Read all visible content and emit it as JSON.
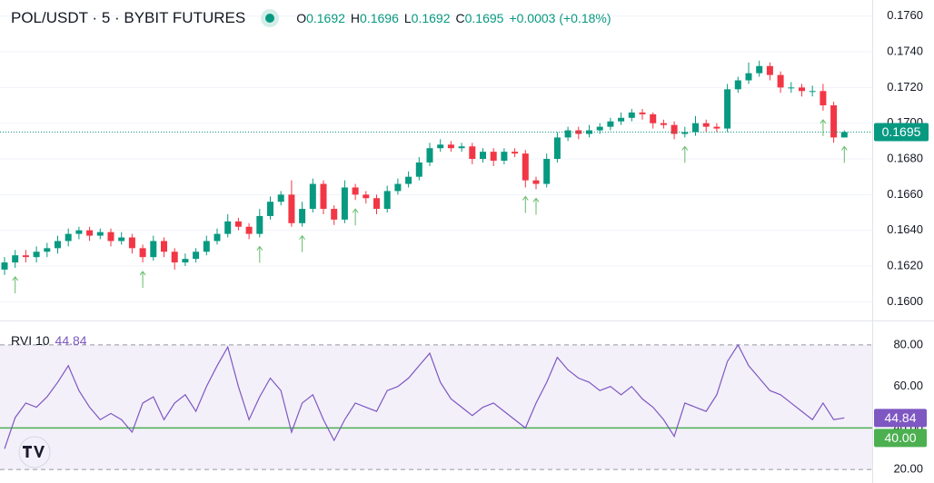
{
  "chart_data": [
    {
      "type": "candlestick",
      "title": "POL/USDT · 5 · BYBIT FUTURES",
      "legend_labels": [
        "O",
        "H",
        "L",
        "C"
      ],
      "change_label": "+0.0003 (+0.18%)",
      "up_color": "#089981",
      "down_color": "#f23645",
      "ylim": [
        0.159,
        0.1769
      ],
      "yticks": [
        {
          "value": 0.16,
          "label": "0.1600"
        },
        {
          "value": 0.162,
          "label": "0.1620"
        },
        {
          "value": 0.164,
          "label": "0.1640"
        },
        {
          "value": 0.166,
          "label": "0.1660"
        },
        {
          "value": 0.168,
          "label": "0.1680"
        },
        {
          "value": 0.17,
          "label": "0.1700"
        },
        {
          "value": 0.172,
          "label": "0.1720"
        },
        {
          "value": 0.174,
          "label": "0.1740"
        },
        {
          "value": 0.176,
          "label": "0.1760"
        }
      ],
      "grid": true,
      "open": [
        0.1618,
        0.1622,
        0.1626,
        0.1625,
        0.1628,
        0.163,
        0.1634,
        0.1638,
        0.164,
        0.1637,
        0.1639,
        0.1634,
        0.1636,
        0.163,
        0.1625,
        0.1634,
        0.1628,
        0.1622,
        0.1624,
        0.1628,
        0.1634,
        0.1638,
        0.1645,
        0.1642,
        0.1638,
        0.1648,
        0.1656,
        0.166,
        0.1644,
        0.1652,
        0.1666,
        0.1652,
        0.1646,
        0.1664,
        0.166,
        0.1658,
        0.1652,
        0.1662,
        0.1666,
        0.167,
        0.1678,
        0.1686,
        0.1688,
        0.1686,
        0.1687,
        0.168,
        0.1684,
        0.1679,
        0.1684,
        0.1683,
        0.1668,
        0.1666,
        0.168,
        0.1692,
        0.1696,
        0.1694,
        0.1696,
        0.1698,
        0.1701,
        0.1703,
        0.1706,
        0.1705,
        0.17,
        0.1699,
        0.1694,
        0.1695,
        0.17,
        0.1698,
        0.1697,
        0.1719,
        0.1724,
        0.1728,
        0.1732,
        0.1727,
        0.172,
        0.172,
        0.1718,
        0.1718,
        0.171,
        0.1692
      ],
      "high": [
        0.1625,
        0.1629,
        0.1629,
        0.1631,
        0.1633,
        0.1637,
        0.1641,
        0.1642,
        0.1642,
        0.1641,
        0.1641,
        0.1639,
        0.1638,
        0.1632,
        0.1637,
        0.1636,
        0.163,
        0.1627,
        0.163,
        0.1637,
        0.1641,
        0.1649,
        0.1647,
        0.1644,
        0.1652,
        0.1659,
        0.1662,
        0.1668,
        0.1656,
        0.1669,
        0.1668,
        0.1654,
        0.1668,
        0.1666,
        0.1662,
        0.166,
        0.1665,
        0.1669,
        0.1673,
        0.1681,
        0.1689,
        0.1691,
        0.169,
        0.1689,
        0.1689,
        0.1686,
        0.1686,
        0.1686,
        0.1686,
        0.1685,
        0.167,
        0.1683,
        0.1695,
        0.1698,
        0.1698,
        0.1699,
        0.17,
        0.1703,
        0.1706,
        0.1708,
        0.1708,
        0.1706,
        0.1702,
        0.1701,
        0.1698,
        0.1704,
        0.1702,
        0.17,
        0.1722,
        0.1726,
        0.1734,
        0.1735,
        0.1734,
        0.1729,
        0.1723,
        0.1722,
        0.1721,
        0.1722,
        0.1712,
        0.1696
      ],
      "low": [
        0.1615,
        0.1619,
        0.1622,
        0.1622,
        0.1625,
        0.1627,
        0.1631,
        0.1635,
        0.1634,
        0.1635,
        0.1631,
        0.1632,
        0.1627,
        0.1622,
        0.1623,
        0.1625,
        0.1618,
        0.162,
        0.1622,
        0.1626,
        0.1632,
        0.1636,
        0.164,
        0.1635,
        0.1636,
        0.1646,
        0.1654,
        0.1642,
        0.1642,
        0.165,
        0.1649,
        0.1643,
        0.1644,
        0.1657,
        0.1655,
        0.1649,
        0.165,
        0.166,
        0.1664,
        0.1668,
        0.1676,
        0.1684,
        0.1684,
        0.1684,
        0.1677,
        0.1678,
        0.1676,
        0.1677,
        0.1681,
        0.1664,
        0.1663,
        0.1664,
        0.1678,
        0.169,
        0.1691,
        0.1692,
        0.1694,
        0.1696,
        0.1699,
        0.1701,
        0.1702,
        0.1697,
        0.1697,
        0.1691,
        0.1692,
        0.1693,
        0.1695,
        0.1695,
        0.1695,
        0.1717,
        0.1722,
        0.1726,
        0.1724,
        0.1717,
        0.1717,
        0.1715,
        0.1715,
        0.1707,
        0.1689,
        0.1692
      ],
      "close": [
        0.1622,
        0.1626,
        0.1625,
        0.1628,
        0.163,
        0.1634,
        0.1638,
        0.164,
        0.1637,
        0.1639,
        0.1634,
        0.1636,
        0.163,
        0.1625,
        0.1634,
        0.1628,
        0.1622,
        0.1624,
        0.1628,
        0.1634,
        0.1638,
        0.1645,
        0.1642,
        0.1638,
        0.1648,
        0.1656,
        0.166,
        0.1644,
        0.1652,
        0.1666,
        0.1652,
        0.1646,
        0.1664,
        0.166,
        0.1658,
        0.1652,
        0.1662,
        0.1666,
        0.167,
        0.1678,
        0.1686,
        0.1688,
        0.1686,
        0.1687,
        0.168,
        0.1684,
        0.1679,
        0.1684,
        0.1683,
        0.1668,
        0.1666,
        0.168,
        0.1692,
        0.1696,
        0.1694,
        0.1696,
        0.1698,
        0.1701,
        0.1703,
        0.1706,
        0.1705,
        0.17,
        0.1699,
        0.1694,
        0.1695,
        0.17,
        0.1698,
        0.1697,
        0.1719,
        0.1724,
        0.1728,
        0.1732,
        0.1727,
        0.172,
        0.172,
        0.1718,
        0.1718,
        0.171,
        0.1692,
        0.1695
      ],
      "buy_signals": [
        1,
        13,
        24,
        28,
        33,
        49,
        50,
        64,
        77,
        79
      ],
      "signal_color": "#66bb6a"
    },
    {
      "type": "line",
      "title": "RVI 10",
      "color": "#7e57c2",
      "ylim": [
        13.5,
        90.9
      ],
      "yticks": [
        {
          "value": 20,
          "label": "20.00"
        },
        {
          "value": 40,
          "label": "40.00"
        },
        {
          "value": 60,
          "label": "60.00"
        },
        {
          "value": 80,
          "label": "80.00"
        }
      ],
      "band": [
        80,
        20
      ],
      "band_color": "#7e57c2",
      "level": {
        "value": 40,
        "label": "40.00",
        "color": "#4caf50"
      },
      "values": [
        30,
        45,
        52,
        50,
        55,
        62,
        70,
        58,
        50,
        44,
        47,
        44,
        38,
        52,
        55,
        44,
        52,
        56,
        48,
        60,
        70,
        79,
        60,
        44,
        55,
        64,
        58,
        38,
        52,
        56,
        44,
        34,
        44,
        52,
        50,
        48,
        58,
        60,
        64,
        70,
        76,
        62,
        54,
        50,
        46,
        50,
        52,
        48,
        44,
        40,
        52,
        62,
        74,
        68,
        64,
        62,
        58,
        60,
        56,
        60,
        54,
        50,
        44,
        36,
        52,
        50,
        48,
        56,
        72,
        80,
        70,
        64,
        58,
        56,
        52,
        48,
        44,
        52,
        44,
        44.84
      ]
    }
  ]
}
